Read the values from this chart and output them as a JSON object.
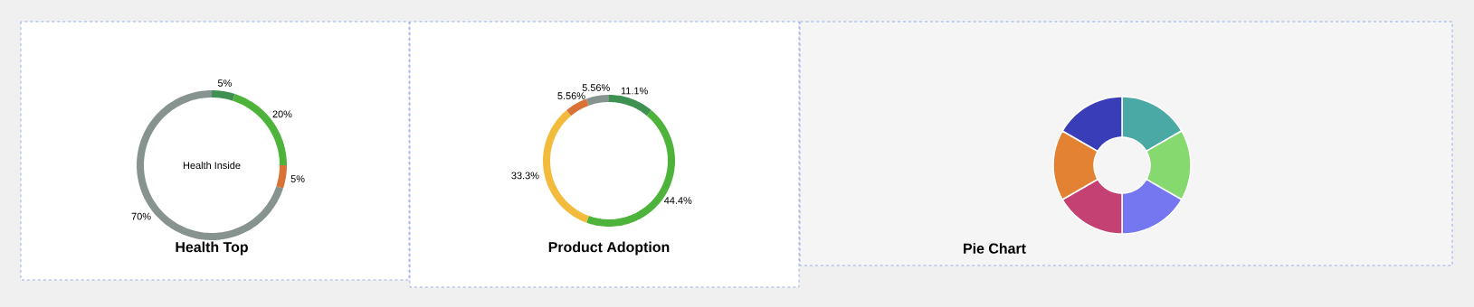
{
  "chart_data": [
    {
      "type": "donut",
      "title": "Health Top",
      "categories": [
        null,
        null,
        null,
        null
      ],
      "values": [
        5,
        20,
        5,
        70
      ],
      "value_labels": [
        "5%",
        "20%",
        "5%",
        "70%"
      ],
      "colors": [
        "#3f9152",
        "#4eb33a",
        "#d97235",
        "#87938f"
      ],
      "annotations": [
        "Health Inside"
      ]
    },
    {
      "type": "donut",
      "title": "Product Adoption",
      "categories": [
        null,
        null,
        null,
        null,
        null
      ],
      "values": [
        11.1,
        44.4,
        33.3,
        5.56,
        5.56
      ],
      "value_labels": [
        "11.1%",
        "44.4%",
        "33.3%",
        "5.56%",
        "5.56%"
      ],
      "colors": [
        "#3f9152",
        "#4eb33a",
        "#f2bb3c",
        "#d97235",
        "#87938f"
      ]
    },
    {
      "type": "donut",
      "title": "Pie Chart",
      "categories": [
        null,
        null,
        null,
        null,
        null,
        null
      ],
      "values": [
        16.67,
        16.67,
        16.67,
        16.67,
        16.67,
        16.67
      ],
      "colors": [
        "#4aa9a4",
        "#85d96e",
        "#7477ef",
        "#c44174",
        "#e38233",
        "#3a3db8"
      ]
    }
  ]
}
